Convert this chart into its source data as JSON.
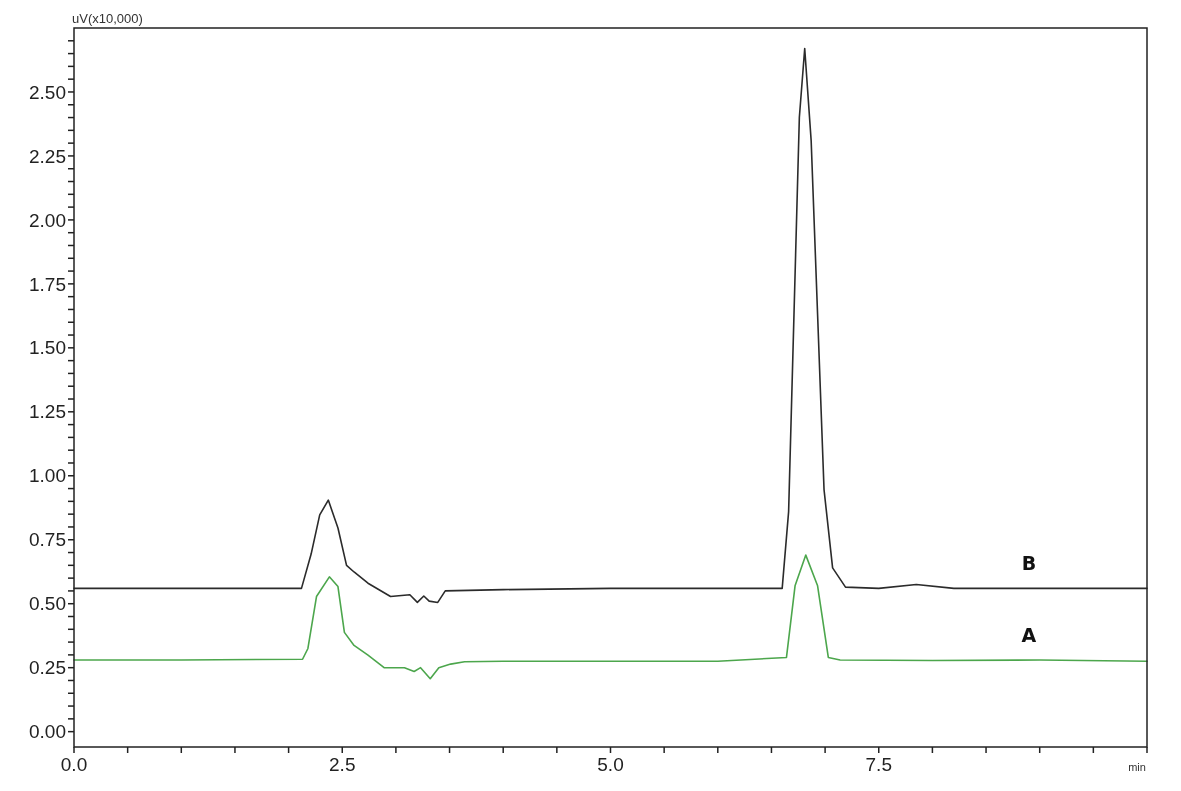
{
  "chart_data": {
    "type": "line",
    "xlabel": "min",
    "ylabel": "uV(x10,000)",
    "xlim": [
      0,
      10
    ],
    "ylim": [
      -0.06,
      2.75
    ],
    "xticks": [
      {
        "value": 0,
        "label": "0.0"
      },
      {
        "value": 0.5,
        "label": null
      },
      {
        "value": 1,
        "label": null
      },
      {
        "value": 1.5,
        "label": null
      },
      {
        "value": 2,
        "label": null
      },
      {
        "value": 2.5,
        "label": "2.5"
      },
      {
        "value": 3,
        "label": null
      },
      {
        "value": 3.5,
        "label": null
      },
      {
        "value": 4,
        "label": null
      },
      {
        "value": 4.5,
        "label": null
      },
      {
        "value": 5,
        "label": "5.0"
      },
      {
        "value": 5.5,
        "label": null
      },
      {
        "value": 6,
        "label": null
      },
      {
        "value": 6.5,
        "label": null
      },
      {
        "value": 7,
        "label": null
      },
      {
        "value": 7.5,
        "label": "7.5"
      },
      {
        "value": 8,
        "label": null
      },
      {
        "value": 8.5,
        "label": null
      },
      {
        "value": 9,
        "label": null
      },
      {
        "value": 9.5,
        "label": null
      },
      {
        "value": 10,
        "label": null
      }
    ],
    "yticks": [
      {
        "value": 0,
        "label": "0.00"
      },
      {
        "value": 0.25,
        "label": "0.25"
      },
      {
        "value": 0.5,
        "label": "0.50"
      },
      {
        "value": 0.75,
        "label": "0.75"
      },
      {
        "value": 1,
        "label": "1.00"
      },
      {
        "value": 1.25,
        "label": "1.25"
      },
      {
        "value": 1.5,
        "label": "1.50"
      },
      {
        "value": 1.75,
        "label": "1.75"
      },
      {
        "value": 2,
        "label": "2.00"
      },
      {
        "value": 2.25,
        "label": "2.25"
      },
      {
        "value": 2.5,
        "label": "2.50"
      },
      {
        "value": 0.05,
        "label": null
      },
      {
        "value": 0.1,
        "label": null
      },
      {
        "value": 0.15,
        "label": null
      },
      {
        "value": 0.2,
        "label": null
      },
      {
        "value": 0.3,
        "label": null
      },
      {
        "value": 0.35,
        "label": null
      },
      {
        "value": 0.4,
        "label": null
      },
      {
        "value": 0.45,
        "label": null
      },
      {
        "value": 0.55,
        "label": null
      },
      {
        "value": 0.6,
        "label": null
      },
      {
        "value": 0.65,
        "label": null
      },
      {
        "value": 0.7,
        "label": null
      },
      {
        "value": 0.8,
        "label": null
      },
      {
        "value": 0.85,
        "label": null
      },
      {
        "value": 0.9,
        "label": null
      },
      {
        "value": 0.95,
        "label": null
      },
      {
        "value": 1.05,
        "label": null
      },
      {
        "value": 1.1,
        "label": null
      },
      {
        "value": 1.15,
        "label": null
      },
      {
        "value": 1.2,
        "label": null
      },
      {
        "value": 1.3,
        "label": null
      },
      {
        "value": 1.35,
        "label": null
      },
      {
        "value": 1.4,
        "label": null
      },
      {
        "value": 1.45,
        "label": null
      },
      {
        "value": 1.55,
        "label": null
      },
      {
        "value": 1.6,
        "label": null
      },
      {
        "value": 1.65,
        "label": null
      },
      {
        "value": 1.7,
        "label": null
      },
      {
        "value": 1.8,
        "label": null
      },
      {
        "value": 1.85,
        "label": null
      },
      {
        "value": 1.9,
        "label": null
      },
      {
        "value": 1.95,
        "label": null
      },
      {
        "value": 2.05,
        "label": null
      },
      {
        "value": 2.1,
        "label": null
      },
      {
        "value": 2.15,
        "label": null
      },
      {
        "value": 2.2,
        "label": null
      },
      {
        "value": 2.3,
        "label": null
      },
      {
        "value": 2.35,
        "label": null
      },
      {
        "value": 2.4,
        "label": null
      },
      {
        "value": 2.45,
        "label": null
      },
      {
        "value": 2.55,
        "label": null
      },
      {
        "value": 2.6,
        "label": null
      },
      {
        "value": 2.65,
        "label": null
      },
      {
        "value": 2.7,
        "label": null
      }
    ],
    "grid": false,
    "marker": "none",
    "line_style": "solid",
    "series": [
      {
        "name": "B",
        "color": "#2b2b2b",
        "x": [
          0,
          1,
          2.12,
          2.21,
          2.29,
          2.37,
          2.46,
          2.54,
          2.61,
          2.74,
          2.95,
          3.13,
          3.2,
          3.26,
          3.31,
          3.39,
          3.46,
          4,
          5,
          6,
          6.6,
          6.66,
          6.71,
          6.76,
          6.81,
          6.87,
          6.93,
          6.99,
          7.07,
          7.19,
          7.5,
          7.85,
          8.2,
          9,
          10
        ],
        "values": [
          0.56,
          0.56,
          0.56,
          0.694,
          0.847,
          0.905,
          0.796,
          0.65,
          0.624,
          0.58,
          0.528,
          0.535,
          0.505,
          0.53,
          0.51,
          0.505,
          0.55,
          0.555,
          0.56,
          0.56,
          0.56,
          0.86,
          1.63,
          2.4,
          2.67,
          2.31,
          1.63,
          0.946,
          0.64,
          0.565,
          0.56,
          0.575,
          0.56,
          0.56,
          0.56
        ]
      },
      {
        "name": "A",
        "color": "#4ca64c",
        "x": [
          0,
          1,
          2.13,
          2.18,
          2.26,
          2.38,
          2.46,
          2.52,
          2.61,
          2.74,
          2.89,
          3.08,
          3.17,
          3.23,
          3.32,
          3.4,
          3.51,
          3.64,
          4,
          5,
          6,
          6.64,
          6.72,
          6.82,
          6.93,
          7.03,
          7.14,
          8,
          9,
          10
        ],
        "values": [
          0.28,
          0.28,
          0.283,
          0.325,
          0.528,
          0.605,
          0.567,
          0.388,
          0.337,
          0.299,
          0.25,
          0.25,
          0.235,
          0.25,
          0.207,
          0.25,
          0.264,
          0.273,
          0.275,
          0.275,
          0.275,
          0.29,
          0.57,
          0.69,
          0.57,
          0.29,
          0.28,
          0.278,
          0.28,
          0.275
        ]
      }
    ]
  }
}
